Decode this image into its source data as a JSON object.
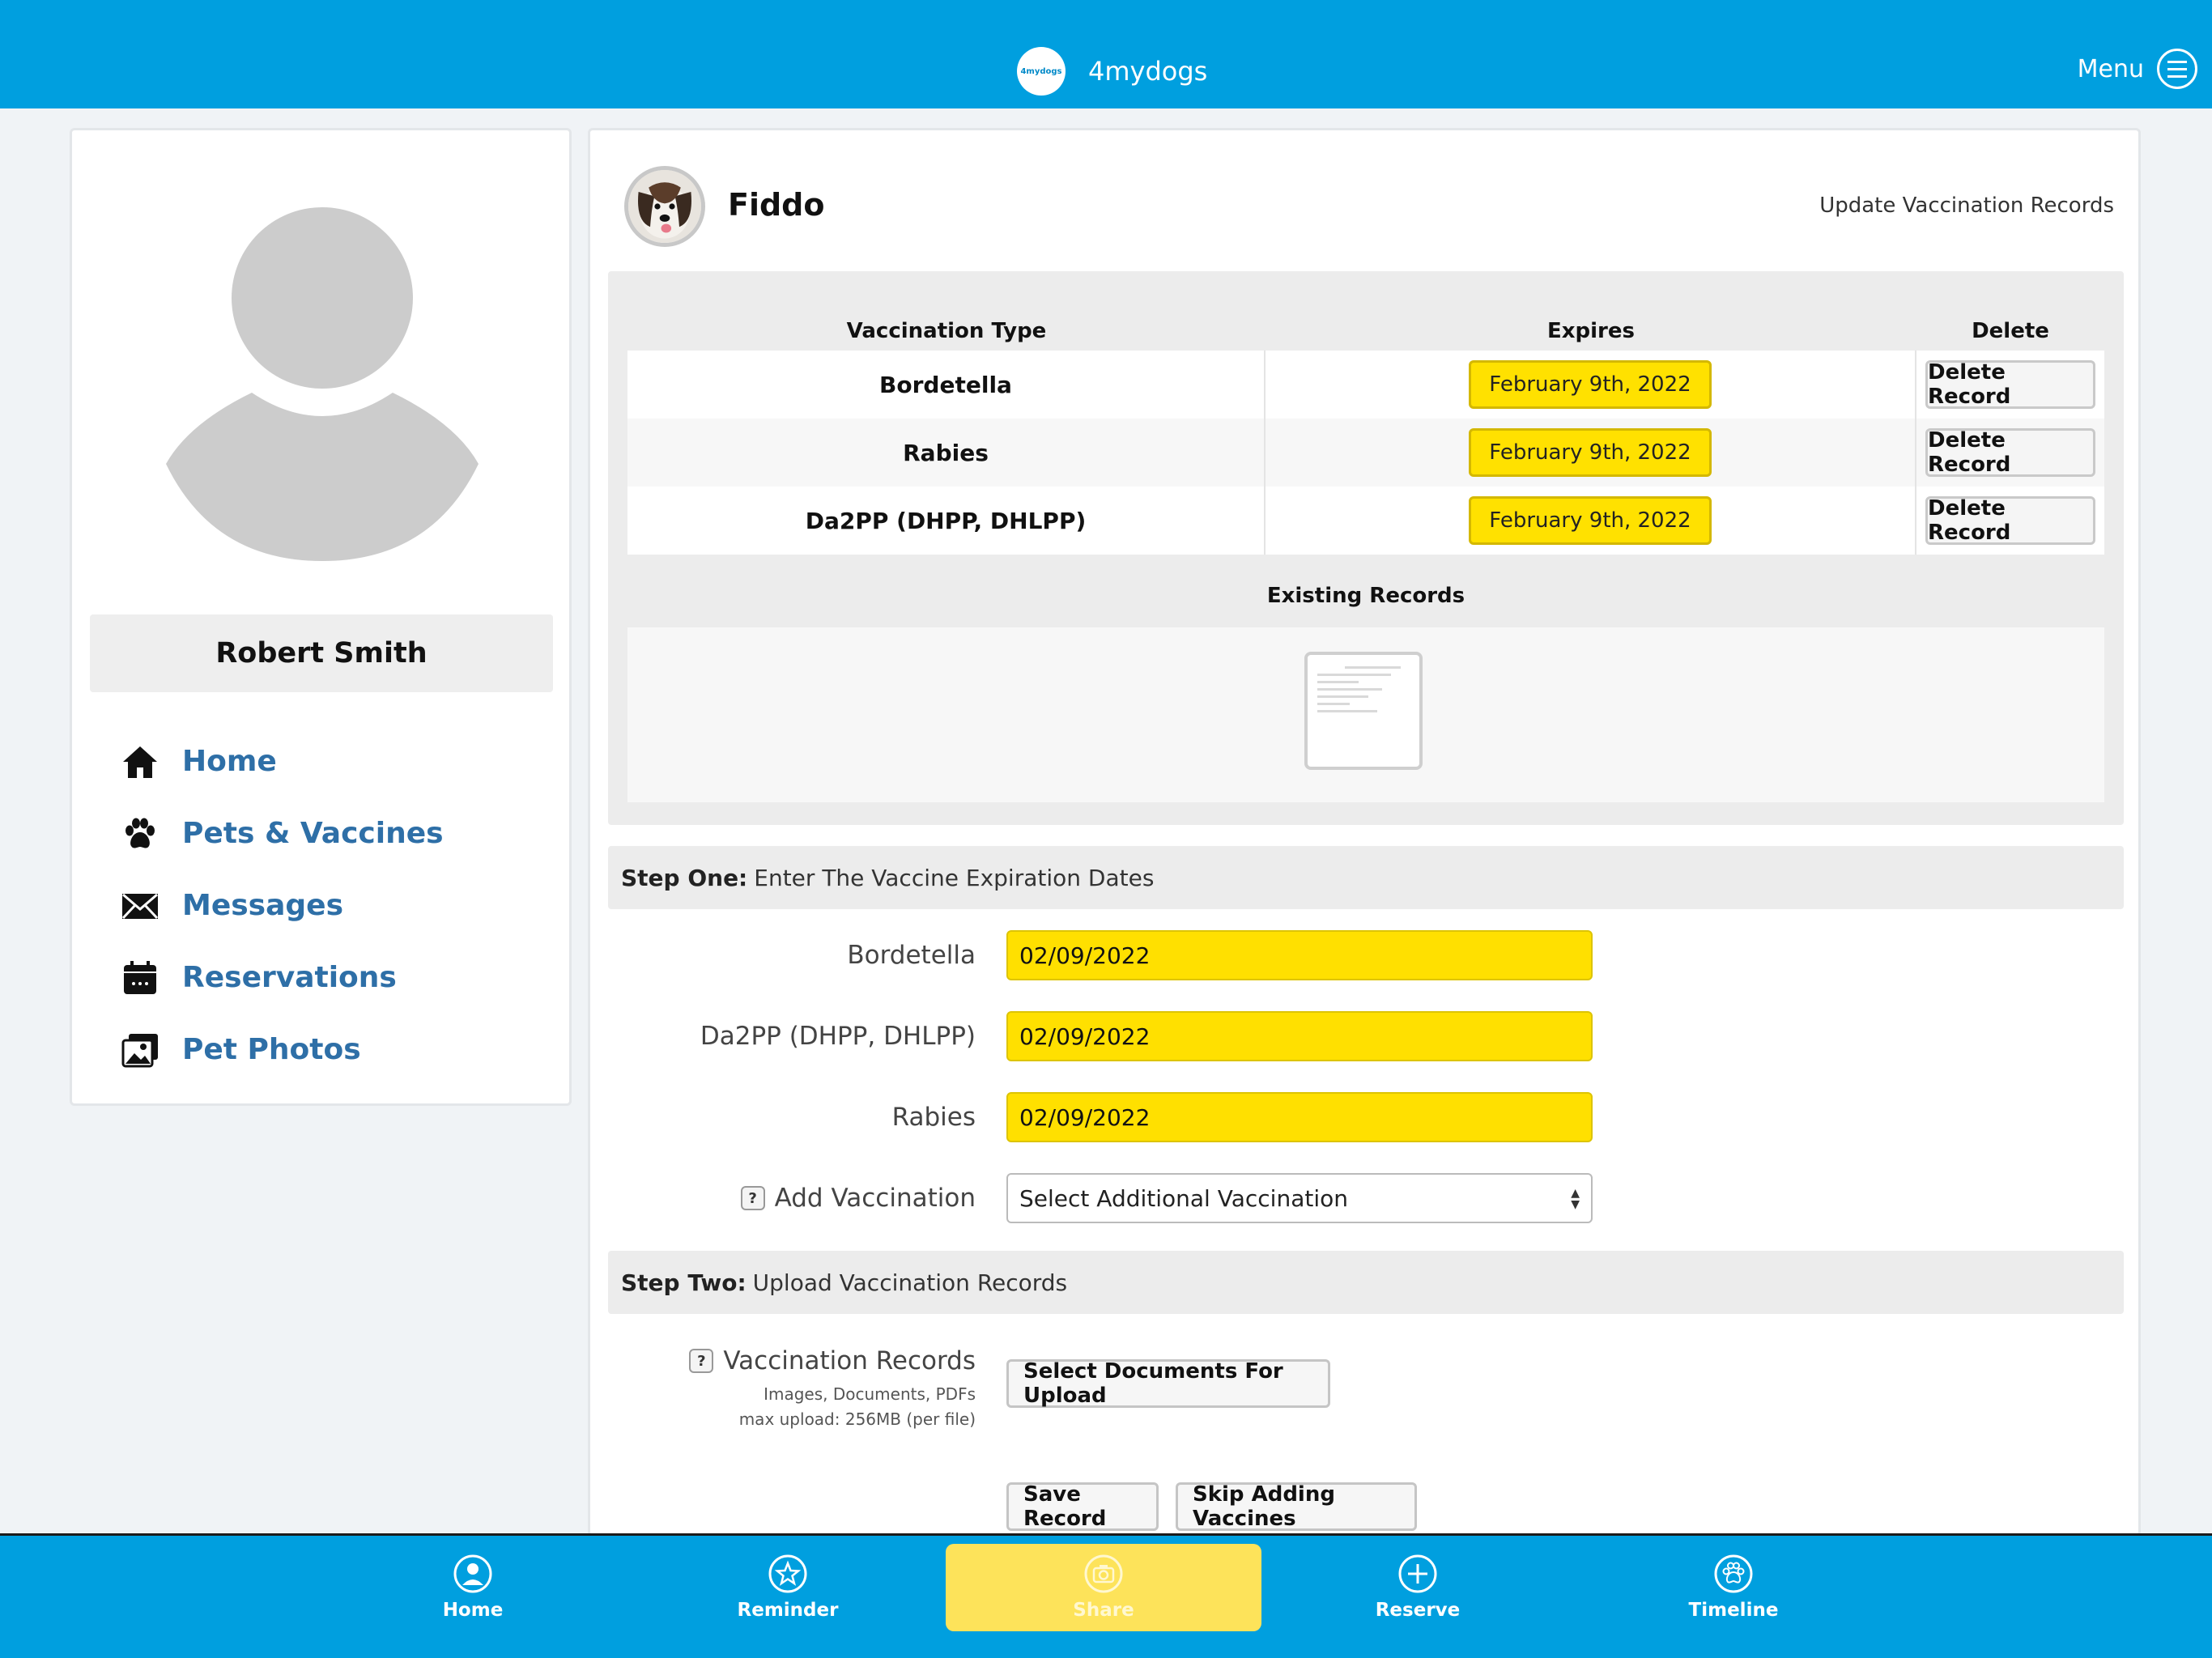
{
  "app": {
    "name": "4mydogs",
    "logo_text": "4mydogs",
    "menu_label": "Menu"
  },
  "profile": {
    "name": "Robert Smith"
  },
  "nav": {
    "items": [
      {
        "label": "Home",
        "icon": "home-icon"
      },
      {
        "label": "Pets & Vaccines",
        "icon": "paw-icon"
      },
      {
        "label": "Messages",
        "icon": "envelope-icon"
      },
      {
        "label": "Reservations",
        "icon": "calendar-icon"
      },
      {
        "label": "Pet Photos",
        "icon": "photos-icon"
      }
    ]
  },
  "pet": {
    "name": "Fiddo"
  },
  "page": {
    "action": "Update Vaccination Records"
  },
  "vaccinations": {
    "headers": {
      "type": "Vaccination Type",
      "expires": "Expires",
      "delete": "Delete"
    },
    "rows": [
      {
        "type": "Bordetella",
        "expires": "February 9th, 2022",
        "action": "Delete Record"
      },
      {
        "type": "Rabies",
        "expires": "February 9th, 2022",
        "action": "Delete Record"
      },
      {
        "type": "Da2PP (DHPP, DHLPP)",
        "expires": "February 9th, 2022",
        "action": "Delete Record"
      }
    ],
    "existing_label": "Existing Records"
  },
  "step_one": {
    "bold": "Step One:",
    "text": "Enter The Vaccine Expiration Dates",
    "fields": [
      {
        "label": "Bordetella",
        "value": "02/09/2022"
      },
      {
        "label": "Da2PP (DHPP, DHLPP)",
        "value": "02/09/2022"
      },
      {
        "label": "Rabies",
        "value": "02/09/2022"
      }
    ],
    "add": {
      "help": "?",
      "label": "Add Vaccination",
      "selected": "Select Additional Vaccination"
    }
  },
  "step_two": {
    "bold": "Step Two:",
    "text": "Upload Vaccination Records",
    "help": "?",
    "label": "Vaccination Records",
    "sub1": "Images, Documents, PDFs",
    "sub2": "max upload: 256MB (per file)",
    "upload_button": "Select Documents For Upload"
  },
  "actions": {
    "save": "Save Record",
    "skip": "Skip Adding Vaccines"
  },
  "tabbar": {
    "items": [
      {
        "label": "Home",
        "icon": "person-circle-icon"
      },
      {
        "label": "Reminder",
        "icon": "star-icon"
      },
      {
        "label": "Share",
        "icon": "camera-icon",
        "active": true
      },
      {
        "label": "Reserve",
        "icon": "plus-circle-icon"
      },
      {
        "label": "Timeline",
        "icon": "paw-circle-icon"
      }
    ]
  },
  "colors": {
    "brand": "#009fdf",
    "highlight": "#ffe000",
    "nav_link": "#2e6fa7",
    "active_tab": "#fde35a"
  }
}
